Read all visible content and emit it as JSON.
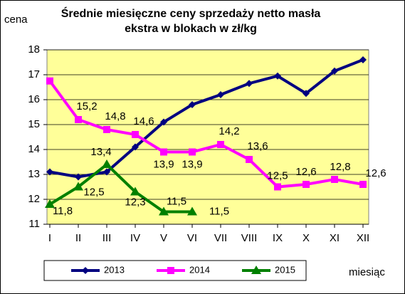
{
  "chart_data": {
    "type": "line",
    "title_lines": [
      "Średnie miesięczne ceny sprzedaży netto masła",
      "ekstra w blokach w zł/kg"
    ],
    "y_label": "cena",
    "x_label": "miesiąc",
    "categories": [
      "I",
      "II",
      "III",
      "IV",
      "V",
      "VI",
      "VII",
      "VIII",
      "IX",
      "X",
      "XI",
      "XII"
    ],
    "series": [
      {
        "name": "2013",
        "color": "#000080",
        "marker": "diamond",
        "values": [
          13.1,
          12.9,
          13.1,
          14.1,
          15.1,
          15.8,
          16.2,
          16.65,
          16.95,
          16.25,
          17.15,
          17.6
        ]
      },
      {
        "name": "2014",
        "color": "#ff00ff",
        "marker": "square",
        "values": [
          16.75,
          15.2,
          14.8,
          14.6,
          13.9,
          13.9,
          14.2,
          13.6,
          12.5,
          12.6,
          12.8,
          12.6
        ],
        "value_labels": [
          null,
          "15,2",
          "14,8",
          "14,6",
          "13,9",
          "13,9",
          "14,2",
          "13,6",
          "12,5",
          "12,6",
          "12,8",
          "12,6"
        ]
      },
      {
        "name": "2015",
        "color": "#008000",
        "marker": "triangle",
        "values": [
          11.8,
          12.5,
          13.4,
          12.3,
          11.5,
          11.5,
          null,
          null,
          null,
          null,
          null,
          null
        ],
        "value_labels": [
          "11,8",
          "12,5",
          "13,4",
          "12,3",
          "11,5",
          "11,5",
          null,
          null,
          null,
          null,
          null,
          null
        ]
      }
    ],
    "ylim": [
      11,
      18
    ],
    "yticks": [
      11,
      12,
      13,
      14,
      15,
      16,
      17,
      18
    ],
    "grid": true,
    "plot_background": "#ffff99"
  }
}
